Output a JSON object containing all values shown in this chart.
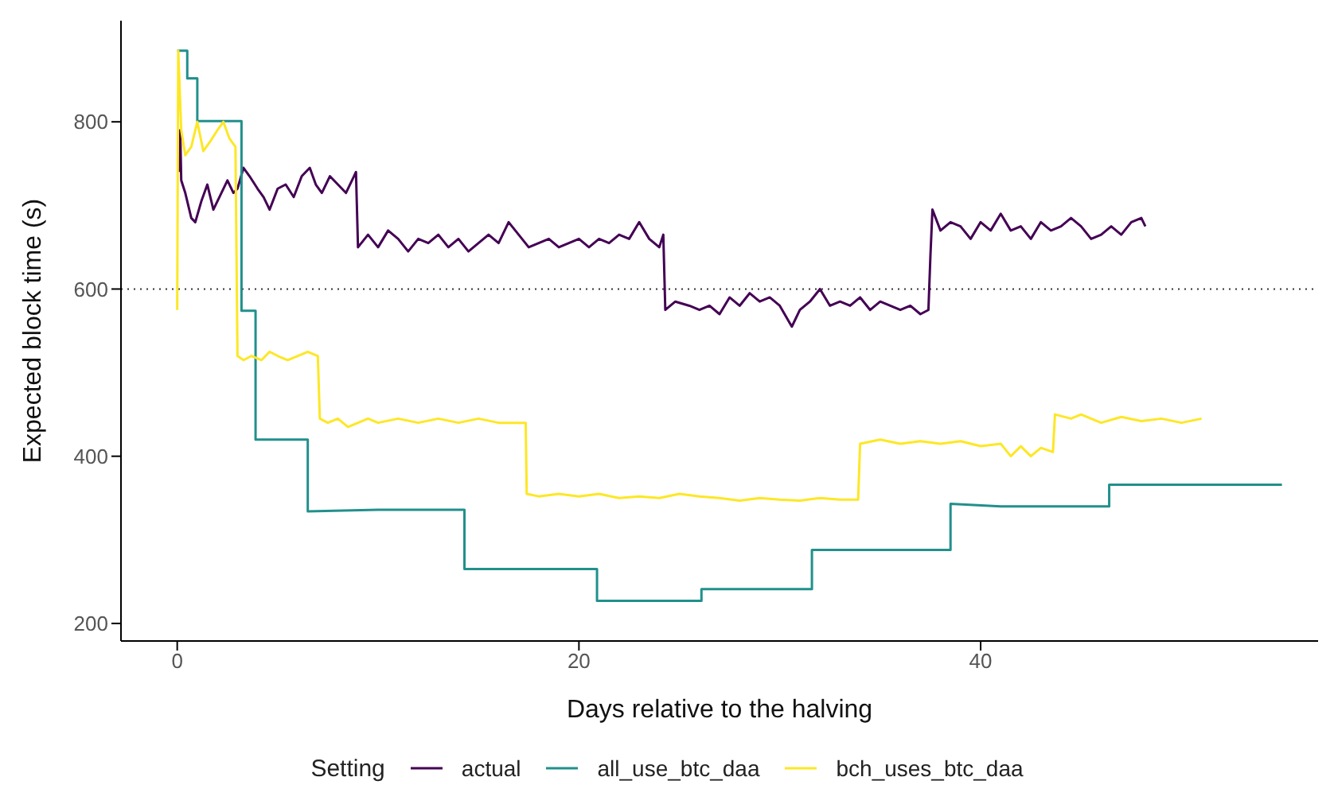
{
  "chart_data": {
    "type": "line",
    "xlabel": "Days relative to the halving",
    "ylabel": "Expected block time (s)",
    "legend_title": "Setting",
    "legend": "bottom",
    "grid": false,
    "xlim": [
      -2.8,
      56.8
    ],
    "ylim": [
      179,
      921
    ],
    "xticks": [
      0,
      20,
      40
    ],
    "yticks": [
      200,
      400,
      600,
      800
    ],
    "ref_lines": [
      {
        "axis": "y",
        "value": 600,
        "color": "#333333",
        "line_style": "dotted"
      }
    ],
    "series": [
      {
        "name": "actual",
        "color": "#440154",
        "x": [
          0.1,
          0.15,
          0.2,
          0.4,
          0.7,
          0.9,
          1.2,
          1.5,
          1.8,
          2.1,
          2.5,
          2.8,
          3.0,
          3.3,
          3.6,
          4.0,
          4.3,
          4.6,
          5.0,
          5.4,
          5.8,
          6.2,
          6.6,
          6.9,
          7.2,
          7.6,
          8.0,
          8.4,
          8.8,
          8.9,
          9.0,
          9.5,
          10.0,
          10.5,
          11.0,
          11.5,
          12.0,
          12.5,
          13.0,
          13.5,
          14.0,
          14.5,
          15.0,
          15.5,
          16.0,
          16.5,
          17.0,
          17.5,
          18.0,
          18.5,
          19.0,
          19.5,
          20.0,
          20.5,
          21.0,
          21.5,
          22.0,
          22.5,
          23.0,
          23.5,
          24.0,
          24.2,
          24.3,
          24.8,
          25.5,
          26.0,
          26.5,
          27.0,
          27.5,
          28.0,
          28.5,
          29.0,
          29.5,
          30.0,
          30.6,
          31.0,
          31.5,
          32.0,
          32.5,
          33.0,
          33.5,
          34.0,
          34.5,
          35.0,
          35.5,
          36.0,
          36.5,
          37.0,
          37.4,
          37.5,
          37.6,
          38.0,
          38.5,
          39.0,
          39.5,
          40.0,
          40.5,
          41.0,
          41.5,
          42.0,
          42.5,
          43.0,
          43.5,
          44.0,
          44.5,
          45.0,
          45.5,
          46.0,
          46.5,
          47.0,
          47.5,
          48.0,
          48.2
        ],
        "values": [
          740,
          790,
          730,
          715,
          685,
          680,
          705,
          725,
          695,
          710,
          730,
          715,
          720,
          745,
          735,
          720,
          710,
          695,
          720,
          725,
          710,
          735,
          745,
          725,
          715,
          735,
          725,
          715,
          735,
          740,
          650,
          665,
          650,
          670,
          660,
          645,
          660,
          655,
          665,
          650,
          660,
          645,
          655,
          665,
          655,
          680,
          665,
          650,
          655,
          660,
          650,
          655,
          660,
          650,
          660,
          655,
          665,
          660,
          680,
          660,
          650,
          665,
          575,
          585,
          580,
          575,
          580,
          570,
          590,
          580,
          595,
          585,
          590,
          580,
          555,
          575,
          585,
          600,
          580,
          585,
          580,
          590,
          575,
          585,
          580,
          575,
          580,
          570,
          575,
          640,
          695,
          670,
          680,
          675,
          660,
          680,
          670,
          690,
          670,
          675,
          660,
          680,
          670,
          675,
          685,
          675,
          660,
          665,
          675,
          665,
          680,
          685,
          675
        ]
      },
      {
        "name": "all_use_btc_daa",
        "color": "#21908c",
        "x": [
          0,
          0.5,
          0.5,
          1.0,
          1.0,
          3.2,
          3.2,
          3.9,
          3.9,
          6.5,
          6.5,
          10,
          14.3,
          14.3,
          20.9,
          20.9,
          26.1,
          26.1,
          31.6,
          31.6,
          38.5,
          38.5,
          41,
          46.4,
          46.4,
          55
        ],
        "values": [
          885,
          885,
          852,
          852,
          801,
          801,
          574,
          574,
          420,
          420,
          334,
          336,
          336,
          265,
          265,
          227,
          227,
          241,
          241,
          288,
          288,
          343,
          340,
          340,
          366,
          366
        ]
      },
      {
        "name": "bch_uses_btc_daa",
        "color": "#fde725",
        "x": [
          0,
          0.05,
          0.2,
          0.4,
          0.7,
          1.0,
          1.3,
          1.6,
          2.0,
          2.3,
          2.6,
          2.9,
          3.0,
          3.3,
          3.7,
          4.2,
          4.6,
          5.0,
          5.5,
          6.0,
          6.5,
          7.0,
          7.1,
          7.5,
          8.0,
          8.5,
          9.0,
          9.5,
          10.0,
          11.0,
          12.0,
          13.0,
          14.0,
          15.0,
          16.0,
          17.0,
          17.35,
          17.4,
          18,
          19,
          20,
          21,
          22,
          23,
          24,
          25,
          26,
          27,
          28,
          29,
          30,
          31,
          32,
          33,
          33.9,
          34.0,
          35,
          36,
          37,
          38,
          39,
          40,
          41,
          41.5,
          42,
          42.5,
          43.0,
          43.6,
          43.7,
          44.5,
          45,
          46,
          47,
          48,
          49,
          50,
          51
        ],
        "values": [
          575,
          885,
          790,
          760,
          770,
          800,
          765,
          775,
          790,
          800,
          780,
          770,
          520,
          515,
          520,
          515,
          525,
          520,
          515,
          520,
          525,
          520,
          445,
          440,
          445,
          435,
          440,
          445,
          440,
          445,
          440,
          445,
          440,
          445,
          440,
          440,
          440,
          355,
          352,
          355,
          352,
          355,
          350,
          352,
          350,
          355,
          352,
          350,
          347,
          350,
          348,
          347,
          350,
          348,
          348,
          415,
          420,
          415,
          418,
          415,
          418,
          412,
          415,
          400,
          412,
          400,
          410,
          405,
          450,
          445,
          450,
          440,
          447,
          442,
          445,
          440,
          445
        ]
      }
    ]
  }
}
